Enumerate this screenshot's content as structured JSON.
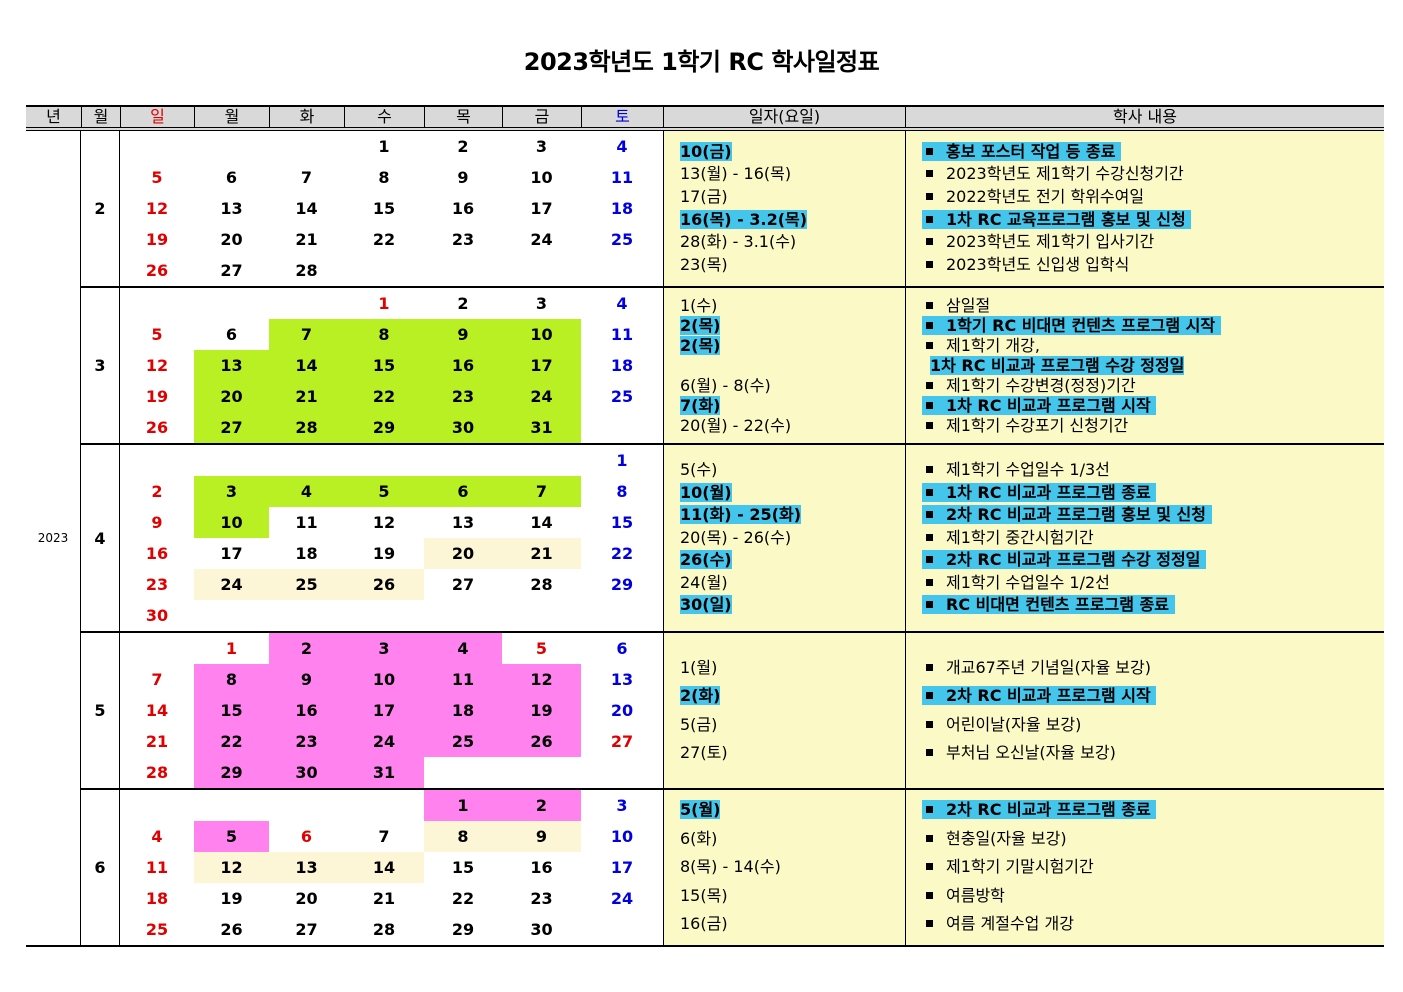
{
  "title": "2023학년도 1학기 RC 학사일정표",
  "header": {
    "year": "년",
    "month": "월",
    "days": [
      "일",
      "월",
      "화",
      "수",
      "목",
      "금",
      "토"
    ],
    "date": "일자(요일)",
    "content": "학사 내용"
  },
  "year": "2023",
  "colors": {
    "highlight": "#44c6ec",
    "green": "#b8f024",
    "pink": "#ff82ee",
    "cream": "#fdf6d6",
    "panel": "#fbfac6",
    "sunday": "#e00000",
    "saturday": "#0000e0"
  },
  "months": [
    {
      "month": "2",
      "lh": 22.6,
      "weeks": [
        [
          "",
          "",
          "",
          "1",
          "2",
          "3",
          "4"
        ],
        [
          "5",
          "6",
          "7",
          "8",
          "9",
          "10",
          "11"
        ],
        [
          "12",
          "13",
          "14",
          "15",
          "16",
          "17",
          "18"
        ],
        [
          "19",
          "20",
          "21",
          "22",
          "23",
          "24",
          "25"
        ],
        [
          "26",
          "27",
          "28",
          "",
          "",
          "",
          ""
        ]
      ],
      "red": [],
      "green": [],
      "pink": [],
      "cream": [],
      "events": [
        {
          "date": "10(금)",
          "text": "홍보 포스터 작업 등 종료",
          "hl": true
        },
        {
          "date": "13(월) - 16(목)",
          "text": "2023학년도 제1학기 수강신청기간"
        },
        {
          "date": "17(금)",
          "text": "2022학년도 전기 학위수여일"
        },
        {
          "date": "16(목) - 3.2(목)",
          "text": "1차 RC 교육프로그램 홍보 및 신청",
          "hl": true
        },
        {
          "date": "28(화) - 3.1(수)",
          "text": "2023학년도 제1학기 입사기간"
        },
        {
          "date": "23(목)",
          "text": "2023학년도 신입생 입학식"
        }
      ]
    },
    {
      "month": "3",
      "lh": 20,
      "weeks": [
        [
          "",
          "",
          "",
          "1",
          "2",
          "3",
          "4"
        ],
        [
          "5",
          "6",
          "7",
          "8",
          "9",
          "10",
          "11"
        ],
        [
          "12",
          "13",
          "14",
          "15",
          "16",
          "17",
          "18"
        ],
        [
          "19",
          "20",
          "21",
          "22",
          "23",
          "24",
          "25"
        ],
        [
          "26",
          "27",
          "28",
          "29",
          "30",
          "31",
          ""
        ]
      ],
      "red": [
        "1"
      ],
      "green": [
        "7",
        "8",
        "9",
        "10",
        "13",
        "14",
        "15",
        "16",
        "17",
        "20",
        "21",
        "22",
        "23",
        "24",
        "27",
        "28",
        "29",
        "30",
        "31"
      ],
      "pink": [],
      "cream": [],
      "events": [
        {
          "date": "1(수)",
          "text": "삼일절"
        },
        {
          "date": "2(목)",
          "text": "1학기 RC 비대면 컨텐츠 프로그램 시작",
          "hl": true
        },
        {
          "date": "2(목)",
          "text": "제1학기 개강,",
          "cont": "1차 RC 비교과 프로그램 수강 정정일",
          "date_hl": true
        },
        {
          "date": "6(월) - 8(수)",
          "text": "제1학기 수강변경(정정)기간"
        },
        {
          "date": "7(화)",
          "text": "1차 RC 비교과 프로그램 시작",
          "hl": true
        },
        {
          "date": "20(월) - 22(수)",
          "text": "제1학기 수강포기 신청기간"
        }
      ]
    },
    {
      "month": "4",
      "lh": 22.6,
      "weeks": [
        [
          "",
          "",
          "",
          "",
          "",
          "",
          "1"
        ],
        [
          "2",
          "3",
          "4",
          "5",
          "6",
          "7",
          "8"
        ],
        [
          "9",
          "10",
          "11",
          "12",
          "13",
          "14",
          "15"
        ],
        [
          "16",
          "17",
          "18",
          "19",
          "20",
          "21",
          "22"
        ],
        [
          "23",
          "24",
          "25",
          "26",
          "27",
          "28",
          "29"
        ],
        [
          "30",
          "",
          "",
          "",
          "",
          "",
          ""
        ]
      ],
      "red": [],
      "green": [
        "3",
        "4",
        "5",
        "6",
        "7",
        "10"
      ],
      "pink": [],
      "cream": [
        "20",
        "21",
        "24",
        "25",
        "26"
      ],
      "events": [
        {
          "date": "5(수)",
          "text": "제1학기 수업일수 1/3선"
        },
        {
          "date": "10(월)",
          "text": "1차 RC 비교과 프로그램 종료",
          "hl": true
        },
        {
          "date": "11(화) - 25(화)",
          "text": "2차 RC 비교과 프로그램 홍보 및 신청",
          "hl": true
        },
        {
          "date": "20(목) - 26(수)",
          "text": "제1학기 중간시험기간"
        },
        {
          "date": "26(수)",
          "text": "2차 RC 비교과 프로그램 수강 정정일",
          "hl": true
        },
        {
          "date": "24(월)",
          "text": "제1학기 수업일수 1/2선"
        },
        {
          "date": "30(일)",
          "text": "RC 비대면 컨텐츠 프로그램 종료",
          "hl": true
        }
      ]
    },
    {
      "month": "5",
      "lh": 28.5,
      "weeks": [
        [
          "",
          "1",
          "2",
          "3",
          "4",
          "5",
          "6"
        ],
        [
          "7",
          "8",
          "9",
          "10",
          "11",
          "12",
          "13"
        ],
        [
          "14",
          "15",
          "16",
          "17",
          "18",
          "19",
          "20"
        ],
        [
          "21",
          "22",
          "23",
          "24",
          "25",
          "26",
          "27"
        ],
        [
          "28",
          "29",
          "30",
          "31",
          "",
          "",
          ""
        ]
      ],
      "red": [
        "1",
        "5",
        "27"
      ],
      "green": [],
      "pink": [
        "2",
        "3",
        "4",
        "8",
        "9",
        "10",
        "11",
        "12",
        "15",
        "16",
        "17",
        "18",
        "19",
        "22",
        "23",
        "24",
        "25",
        "26",
        "29",
        "30",
        "31"
      ],
      "cream": [],
      "events": [
        {
          "date": "1(월)",
          "text": "개교67주년 기념일(자율 보강)"
        },
        {
          "date": "2(화)",
          "text": "2차 RC 비교과 프로그램 시작",
          "hl": true
        },
        {
          "date": "5(금)",
          "text": "어린이날(자율 보강)"
        },
        {
          "date": "27(토)",
          "text": "부처님 오신날(자율 보강)"
        }
      ]
    },
    {
      "month": "6",
      "lh": 28.5,
      "weeks": [
        [
          "",
          "",
          "",
          "",
          "1",
          "2",
          "3"
        ],
        [
          "4",
          "5",
          "6",
          "7",
          "8",
          "9",
          "10"
        ],
        [
          "11",
          "12",
          "13",
          "14",
          "15",
          "16",
          "17"
        ],
        [
          "18",
          "19",
          "20",
          "21",
          "22",
          "23",
          "24"
        ],
        [
          "25",
          "26",
          "27",
          "28",
          "29",
          "30",
          ""
        ]
      ],
      "red": [
        "6"
      ],
      "green": [],
      "pink": [
        "1",
        "2",
        "5"
      ],
      "cream": [
        "8",
        "9",
        "12",
        "13",
        "14"
      ],
      "events": [
        {
          "date": "5(월)",
          "text": "2차 RC 비교과 프로그램 종료",
          "hl": true
        },
        {
          "date": "6(화)",
          "text": "현충일(자율 보강)"
        },
        {
          "date": "8(목) - 14(수)",
          "text": "제1학기 기말시험기간"
        },
        {
          "date": "15(목)",
          "text": "여름방학"
        },
        {
          "date": "16(금)",
          "text": "여름 계절수업 개강"
        }
      ]
    }
  ]
}
